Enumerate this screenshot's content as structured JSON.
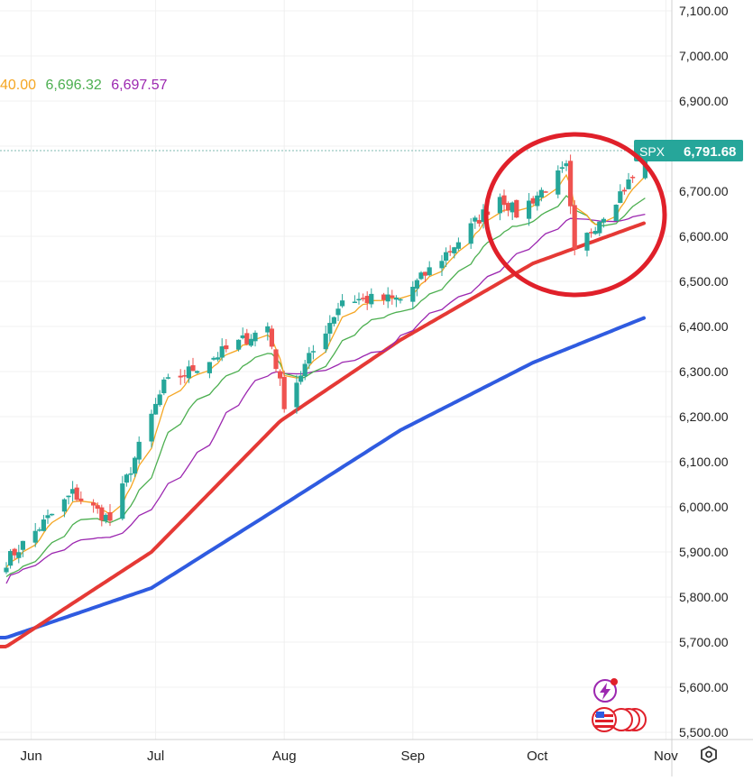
{
  "ma_readout": {
    "values": [
      {
        "text": "40.00",
        "color": "#f5a623"
      },
      {
        "text": "6,696.32",
        "color": "#4caf50"
      },
      {
        "text": "6,697.57",
        "color": "#9c27b0"
      }
    ]
  },
  "price_tag": {
    "symbol": "SPX",
    "value": "6,791.68",
    "color": "#26a69a"
  },
  "colors": {
    "up": "#26a69a",
    "down": "#ef5350",
    "ma_fast": "#f5a623",
    "ma_mid": "#4caf50",
    "ma_slow": "#9c27b0",
    "ma_50": "#e53935",
    "ma_100": "#2f5be0",
    "highlight_circle": "#e0202a"
  },
  "icons": {
    "bolt": "lightning-bolt-icon",
    "flags": "us-flag-icon",
    "settings": "settings-gear-icon"
  },
  "chart_data": {
    "type": "candlestick",
    "y_ticks": [
      "7,100.00",
      "7,000.00",
      "6,900.00",
      "6,800.00",
      "6,700.00",
      "6,600.00",
      "6,500.00",
      "6,400.00",
      "6,300.00",
      "6,200.00",
      "6,100.00",
      "6,000.00",
      "5,900.00",
      "5,800.00",
      "5,700.00",
      "5,600.00",
      "5,500.00"
    ],
    "ylim": [
      5500,
      7100
    ],
    "x_ticks": [
      "Jun",
      "Jul",
      "Aug",
      "Sep",
      "Oct",
      "Nov"
    ],
    "last_price": 6791.68,
    "annotation": "red circle highlighting recent October candles",
    "anchors": [
      {
        "date": "2025-05-26",
        "close": 5880
      },
      {
        "date": "2025-06-11",
        "close": 6030
      },
      {
        "date": "2025-06-20",
        "close": 5970
      },
      {
        "date": "2025-07-03",
        "close": 6270
      },
      {
        "date": "2025-07-28",
        "close": 6400
      },
      {
        "date": "2025-08-01",
        "close": 6230
      },
      {
        "date": "2025-08-15",
        "close": 6460
      },
      {
        "date": "2025-08-29",
        "close": 6460
      },
      {
        "date": "2025-09-12",
        "close": 6590
      },
      {
        "date": "2025-09-22",
        "close": 6690
      },
      {
        "date": "2025-09-26",
        "close": 6650
      },
      {
        "date": "2025-10-08",
        "close": 6750
      },
      {
        "date": "2025-10-10",
        "close": 6560
      },
      {
        "date": "2025-10-16",
        "close": 6640
      },
      {
        "date": "2025-10-24",
        "close": 6730
      },
      {
        "date": "2025-10-27",
        "close": 6790
      }
    ],
    "ma50": [
      {
        "date": "2025-05-26",
        "value": 5690
      },
      {
        "date": "2025-06-30",
        "value": 5900
      },
      {
        "date": "2025-07-31",
        "value": 6190
      },
      {
        "date": "2025-08-29",
        "value": 6370
      },
      {
        "date": "2025-09-30",
        "value": 6540
      },
      {
        "date": "2025-10-27",
        "value": 6630
      }
    ],
    "ma100": [
      {
        "date": "2025-05-26",
        "value": 5710
      },
      {
        "date": "2025-06-30",
        "value": 5820
      },
      {
        "date": "2025-07-31",
        "value": 6000
      },
      {
        "date": "2025-08-29",
        "value": 6170
      },
      {
        "date": "2025-09-30",
        "value": 6320
      },
      {
        "date": "2025-10-27",
        "value": 6420
      }
    ]
  }
}
